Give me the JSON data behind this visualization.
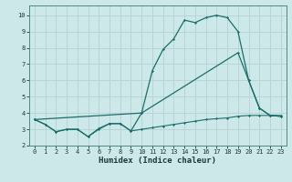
{
  "xlabel": "Humidex (Indice chaleur)",
  "bg_color": "#cce8e8",
  "grid_color": "#b8d4d4",
  "line_color": "#1a6e6a",
  "xlim": [
    -0.5,
    23.5
  ],
  "ylim": [
    2.0,
    10.6
  ],
  "yticks": [
    2,
    3,
    4,
    5,
    6,
    7,
    8,
    9,
    10
  ],
  "xticks": [
    0,
    1,
    2,
    3,
    4,
    5,
    6,
    7,
    8,
    9,
    10,
    11,
    12,
    13,
    14,
    15,
    16,
    17,
    18,
    19,
    20,
    21,
    22,
    23
  ],
  "line1_x": [
    0,
    1,
    2,
    3,
    4,
    5,
    6,
    7,
    8,
    9,
    10,
    11,
    12,
    13,
    14,
    15,
    16,
    17,
    18,
    19,
    20,
    21,
    22,
    23
  ],
  "line1_y": [
    3.6,
    3.3,
    2.85,
    3.0,
    3.0,
    2.55,
    3.0,
    3.35,
    3.35,
    2.9,
    3.0,
    3.1,
    3.2,
    3.3,
    3.4,
    3.5,
    3.6,
    3.65,
    3.7,
    3.8,
    3.85,
    3.85,
    3.85,
    3.85
  ],
  "line2_x": [
    0,
    1,
    2,
    3,
    4,
    5,
    6,
    7,
    8,
    9,
    10,
    11,
    12,
    13,
    14,
    15,
    16,
    17,
    18,
    19,
    20,
    21,
    22,
    23
  ],
  "line2_y": [
    3.6,
    3.3,
    2.85,
    3.0,
    3.0,
    2.55,
    3.05,
    3.35,
    3.35,
    2.9,
    4.0,
    6.6,
    7.9,
    8.55,
    9.7,
    9.55,
    9.85,
    10.0,
    9.85,
    9.0,
    6.0,
    4.3,
    3.85,
    3.8
  ],
  "line3_x": [
    0,
    10,
    19,
    20,
    21,
    22,
    23
  ],
  "line3_y": [
    3.6,
    4.0,
    7.7,
    6.0,
    4.3,
    3.85,
    3.8
  ],
  "xlabel_fontsize": 6.5,
  "xlabel_color": "#1a3a3a",
  "tick_fontsize": 5.0,
  "spine_color": "#4a8a84"
}
